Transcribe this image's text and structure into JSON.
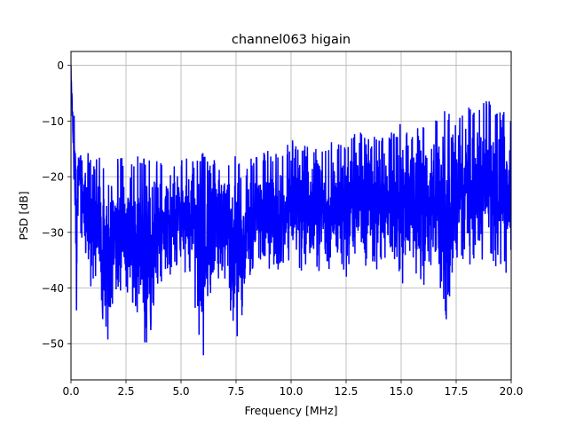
{
  "chart_data": {
    "type": "line",
    "title": "channel063 higain",
    "xlabel": "Frequency [MHz]",
    "ylabel": "PSD [dB]",
    "xlim": [
      0,
      20
    ],
    "ylim": [
      -56.5,
      2.5
    ],
    "xticks": [
      0,
      2.5,
      5,
      7.5,
      10,
      12.5,
      15,
      17.5,
      20
    ],
    "xtick_labels": [
      "0.0",
      "2.5",
      "5.0",
      "7.5",
      "10.0",
      "12.5",
      "15.0",
      "17.5",
      "20.0"
    ],
    "yticks": [
      0,
      -10,
      -20,
      -30,
      -40,
      -50
    ],
    "ytick_labels": [
      "0",
      "−10",
      "−20",
      "−30",
      "−40",
      "−50"
    ],
    "grid": true,
    "legend": "none",
    "series": [
      {
        "color": "#0000ff",
        "x": [
          0,
          0.05,
          0.1,
          0.15,
          0.2,
          0.25,
          0.3,
          0.4,
          0.5,
          0.6,
          0.7,
          0.8,
          0.9,
          1.0,
          1.2,
          1.5,
          1.8,
          2.0,
          2.5,
          3.0,
          3.5,
          4.0,
          4.5,
          5.0,
          5.5,
          6.0,
          6.5,
          7.0,
          7.5,
          8.0,
          8.5,
          9.0,
          9.5,
          10.0,
          10.5,
          11.0,
          11.5,
          12.0,
          12.5,
          13.0,
          13.5,
          14.0,
          14.5,
          15.0,
          15.5,
          16.0,
          16.5,
          17.0,
          17.5,
          18.0,
          18.5,
          19.0,
          19.5,
          20.0
        ],
        "upper": [
          0,
          -3,
          -6,
          -8,
          -7,
          -10,
          -13,
          -9,
          -14,
          -13,
          -16,
          -15,
          -17,
          -18,
          -16,
          -17,
          -18,
          -16,
          -17,
          -16,
          -17,
          -17,
          -17,
          -16,
          -17,
          -15,
          -17,
          -17,
          -16,
          -17,
          -16,
          -15,
          -16,
          -13,
          -14,
          -15,
          -14,
          -13,
          -14,
          -11,
          -13,
          -12,
          -12,
          -10,
          -12,
          -10,
          -10,
          -8,
          -9,
          -7,
          -7,
          -6,
          -8,
          -9
        ],
        "lower": [
          -5,
          -10,
          -18,
          -28,
          -25,
          -51,
          -32,
          -30,
          -34,
          -33,
          -38,
          -39,
          -40,
          -41,
          -37,
          -49,
          -51,
          -41,
          -40,
          -47,
          -52,
          -40,
          -39,
          -36,
          -40,
          -54,
          -38,
          -41,
          -52,
          -40,
          -36,
          -37,
          -39,
          -35,
          -38,
          -36,
          -38,
          -36,
          -38,
          -36,
          -36,
          -37,
          -34,
          -40,
          -37,
          -40,
          -36,
          -47,
          -35,
          -38,
          -36,
          -34,
          -38,
          -37
        ]
      }
    ]
  }
}
